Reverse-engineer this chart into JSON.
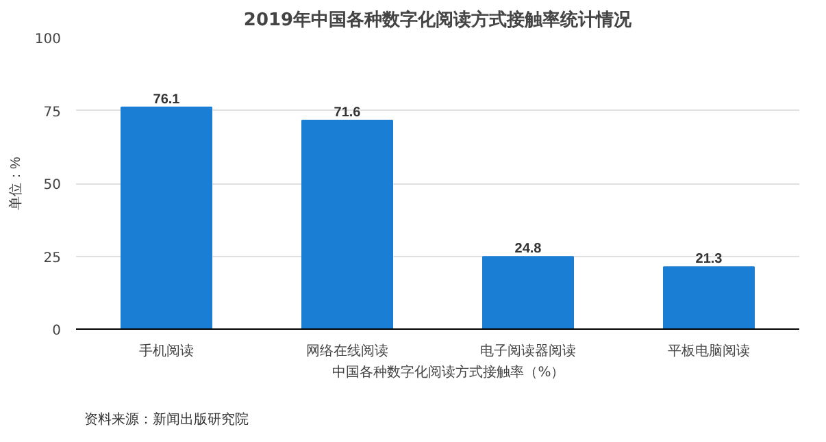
{
  "chart_data": {
    "type": "bar",
    "title": "2019年中国各种数字化阅读方式接触率统计情况",
    "ylabel": "单位：%",
    "categories": [
      "手机阅读",
      "网络在线阅读",
      "电子阅读器阅读",
      "平板电脑阅读"
    ],
    "series": [
      {
        "name": "中国各种数字化阅读方式接触率（%）",
        "color": "#1a7fd4",
        "values": [
          76.1,
          71.6,
          24.8,
          21.3
        ]
      }
    ],
    "ylim": [
      0,
      100
    ],
    "yticks": [
      0,
      25,
      50,
      75,
      100
    ],
    "grid": "y",
    "legend": "bottom",
    "data_labels": true,
    "annotations": [
      "资料来源：新闻出版研究院"
    ]
  }
}
